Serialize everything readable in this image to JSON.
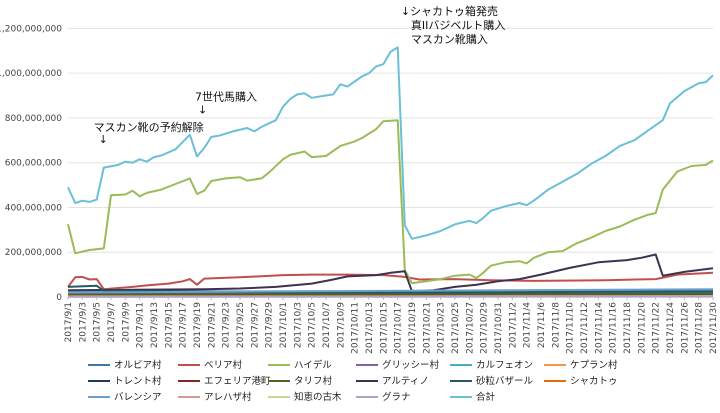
{
  "chart_data": {
    "type": "line",
    "title": "",
    "xlabel": "",
    "ylabel": "",
    "ylim": [
      0,
      1300000000
    ],
    "yticks": [
      0,
      200000000,
      400000000,
      600000000,
      800000000,
      1000000000,
      1200000000
    ],
    "ytick_labels": [
      "0",
      "200,000,000",
      "400,000,000",
      "600,000,000",
      "800,000,000",
      "1,000,000,000",
      "1,200,000,000"
    ],
    "x_start": "2017/9/1",
    "x_end": "2017/11/30",
    "xtick_labels": [
      "2017/9/1",
      "2017/9/3",
      "2017/9/5",
      "2017/9/7",
      "2017/9/9",
      "2017/9/11",
      "2017/9/13",
      "2017/9/15",
      "2017/9/17",
      "2017/9/19",
      "2017/9/21",
      "2017/9/23",
      "2017/9/25",
      "2017/9/27",
      "2017/9/29",
      "2017/10/1",
      "2017/10/3",
      "2017/10/5",
      "2017/10/7",
      "2017/10/9",
      "2017/10/11",
      "2017/10/13",
      "2017/10/15",
      "2017/10/17",
      "2017/10/19",
      "2017/10/21",
      "2017/10/23",
      "2017/10/25",
      "2017/10/27",
      "2017/10/29",
      "2017/10/31",
      "2017/11/2",
      "2017/11/4",
      "2017/11/6",
      "2017/11/8",
      "2017/11/10",
      "2017/11/12",
      "2017/11/14",
      "2017/11/16",
      "2017/11/18",
      "2017/11/20",
      "2017/11/22",
      "2017/11/24",
      "2017/11/26",
      "2017/11/28",
      "2017/11/30"
    ],
    "grid": "horizontal",
    "legend_position": "bottom",
    "annotations": [
      {
        "text": "マスカン靴の予約解除",
        "arrow": "↓",
        "date": "2017/9/5",
        "value": 760000000
      },
      {
        "text": "7世代馬購入",
        "arrow": "↓",
        "date": "2017/9/19",
        "value": 860000000
      },
      {
        "text": "シャカトゥ箱発売",
        "arrow": "↓",
        "date": "2017/10/18",
        "value": 1260000000
      },
      {
        "text": "真IIバジベルト購入",
        "arrow": "",
        "date": "2017/10/18",
        "value": 1260000000
      },
      {
        "text": "マスカン靴購入",
        "arrow": "",
        "date": "2017/10/18",
        "value": 1260000000
      }
    ],
    "series": [
      {
        "name": "オルビア村",
        "color": "#3e77a8",
        "points": [
          [
            "2017/9/1",
            15000000
          ],
          [
            "2017/11/30",
            22000000
          ]
        ]
      },
      {
        "name": "ベリア村",
        "color": "#c0504d",
        "points": [
          [
            "2017/9/1",
            45000000
          ],
          [
            "2017/9/2",
            88000000
          ],
          [
            "2017/9/3",
            90000000
          ],
          [
            "2017/9/4",
            78000000
          ],
          [
            "2017/9/5",
            80000000
          ],
          [
            "2017/9/6",
            35000000
          ],
          [
            "2017/9/8",
            40000000
          ],
          [
            "2017/9/10",
            45000000
          ],
          [
            "2017/9/12",
            52000000
          ],
          [
            "2017/9/15",
            60000000
          ],
          [
            "2017/9/17",
            70000000
          ],
          [
            "2017/9/18",
            80000000
          ],
          [
            "2017/9/19",
            55000000
          ],
          [
            "2017/9/20",
            82000000
          ],
          [
            "2017/9/25",
            88000000
          ],
          [
            "2017/10/1",
            98000000
          ],
          [
            "2017/10/5",
            100000000
          ],
          [
            "2017/10/10",
            100000000
          ],
          [
            "2017/10/15",
            98000000
          ],
          [
            "2017/10/18",
            90000000
          ],
          [
            "2017/10/20",
            78000000
          ],
          [
            "2017/10/25",
            80000000
          ],
          [
            "2017/10/30",
            75000000
          ],
          [
            "2017/11/5",
            72000000
          ],
          [
            "2017/11/15",
            75000000
          ],
          [
            "2017/11/22",
            80000000
          ],
          [
            "2017/11/25",
            100000000
          ],
          [
            "2017/11/30",
            108000000
          ]
        ]
      },
      {
        "name": "ハイデル",
        "color": "#9bbb59",
        "points": [
          [
            "2017/9/1",
            325000000
          ],
          [
            "2017/9/2",
            195000000
          ],
          [
            "2017/9/4",
            210000000
          ],
          [
            "2017/9/6",
            217000000
          ],
          [
            "2017/9/7",
            455000000
          ],
          [
            "2017/9/9",
            458000000
          ],
          [
            "2017/9/10",
            475000000
          ],
          [
            "2017/9/11",
            450000000
          ],
          [
            "2017/9/12",
            465000000
          ],
          [
            "2017/9/14",
            480000000
          ],
          [
            "2017/9/16",
            505000000
          ],
          [
            "2017/9/18",
            530000000
          ],
          [
            "2017/9/19",
            460000000
          ],
          [
            "2017/9/20",
            475000000
          ],
          [
            "2017/9/21",
            518000000
          ],
          [
            "2017/9/23",
            530000000
          ],
          [
            "2017/9/25",
            535000000
          ],
          [
            "2017/9/26",
            520000000
          ],
          [
            "2017/9/28",
            530000000
          ],
          [
            "2017/9/29",
            555000000
          ],
          [
            "2017/10/1",
            615000000
          ],
          [
            "2017/10/2",
            635000000
          ],
          [
            "2017/10/4",
            650000000
          ],
          [
            "2017/10/5",
            625000000
          ],
          [
            "2017/10/7",
            630000000
          ],
          [
            "2017/10/9",
            675000000
          ],
          [
            "2017/10/11",
            695000000
          ],
          [
            "2017/10/12",
            710000000
          ],
          [
            "2017/10/14",
            750000000
          ],
          [
            "2017/10/15",
            785000000
          ],
          [
            "2017/10/17",
            790000000
          ],
          [
            "2017/10/18",
            120000000
          ],
          [
            "2017/10/19",
            62000000
          ],
          [
            "2017/10/21",
            70000000
          ],
          [
            "2017/10/23",
            80000000
          ],
          [
            "2017/10/25",
            95000000
          ],
          [
            "2017/10/27",
            100000000
          ],
          [
            "2017/10/28",
            85000000
          ],
          [
            "2017/10/29",
            110000000
          ],
          [
            "2017/10/30",
            140000000
          ],
          [
            "2017/11/1",
            155000000
          ],
          [
            "2017/11/3",
            160000000
          ],
          [
            "2017/11/4",
            150000000
          ],
          [
            "2017/11/5",
            175000000
          ],
          [
            "2017/11/7",
            200000000
          ],
          [
            "2017/11/9",
            205000000
          ],
          [
            "2017/11/11",
            240000000
          ],
          [
            "2017/11/13",
            265000000
          ],
          [
            "2017/11/15",
            295000000
          ],
          [
            "2017/11/17",
            315000000
          ],
          [
            "2017/11/19",
            345000000
          ],
          [
            "2017/11/21",
            368000000
          ],
          [
            "2017/11/22",
            375000000
          ],
          [
            "2017/11/23",
            480000000
          ],
          [
            "2017/11/25",
            560000000
          ],
          [
            "2017/11/27",
            585000000
          ],
          [
            "2017/11/29",
            590000000
          ],
          [
            "2017/11/30",
            610000000
          ]
        ]
      },
      {
        "name": "グリッシー村",
        "color": "#8064a2",
        "points": [
          [
            "2017/9/1",
            8000000
          ],
          [
            "2017/11/30",
            10000000
          ]
        ]
      },
      {
        "name": "カルフェオン",
        "color": "#4bacc6",
        "points": [
          [
            "2017/9/1",
            25000000
          ],
          [
            "2017/10/18",
            25000000
          ],
          [
            "2017/11/30",
            30000000
          ]
        ]
      },
      {
        "name": "ケプラン村",
        "color": "#f79646",
        "points": [
          [
            "2017/9/1",
            5000000
          ],
          [
            "2017/11/30",
            6000000
          ]
        ]
      },
      {
        "name": "トレント村",
        "color": "#1f3864",
        "points": [
          [
            "2017/9/1",
            10000000
          ],
          [
            "2017/11/30",
            12000000
          ]
        ]
      },
      {
        "name": "エフェリア港町",
        "color": "#7f2a2a",
        "points": [
          [
            "2017/9/1",
            6000000
          ],
          [
            "2017/11/30",
            8000000
          ]
        ]
      },
      {
        "name": "タリフ村",
        "color": "#4f6228",
        "points": [
          [
            "2017/9/1",
            12000000
          ],
          [
            "2017/11/30",
            14000000
          ]
        ]
      },
      {
        "name": "アルティノ",
        "color": "#3f3151",
        "points": [
          [
            "2017/9/1",
            30000000
          ],
          [
            "2017/9/10",
            32000000
          ],
          [
            "2017/9/20",
            35000000
          ],
          [
            "2017/9/25",
            38000000
          ],
          [
            "2017/9/30",
            45000000
          ],
          [
            "2017/10/5",
            60000000
          ],
          [
            "2017/10/8",
            78000000
          ],
          [
            "2017/10/10",
            92000000
          ],
          [
            "2017/10/14",
            98000000
          ],
          [
            "2017/10/16",
            108000000
          ],
          [
            "2017/10/18",
            115000000
          ],
          [
            "2017/10/19",
            25000000
          ],
          [
            "2017/10/22",
            30000000
          ],
          [
            "2017/10/25",
            45000000
          ],
          [
            "2017/10/28",
            55000000
          ],
          [
            "2017/10/31",
            70000000
          ],
          [
            "2017/11/3",
            80000000
          ],
          [
            "2017/11/6",
            100000000
          ],
          [
            "2017/11/10",
            130000000
          ],
          [
            "2017/11/14",
            155000000
          ],
          [
            "2017/11/18",
            165000000
          ],
          [
            "2017/11/20",
            175000000
          ],
          [
            "2017/11/22",
            190000000
          ],
          [
            "2017/11/23",
            95000000
          ],
          [
            "2017/11/26",
            112000000
          ],
          [
            "2017/11/30",
            128000000
          ]
        ]
      },
      {
        "name": "砂粒バザール",
        "color": "#215968",
        "points": [
          [
            "2017/9/1",
            45000000
          ],
          [
            "2017/9/5",
            50000000
          ],
          [
            "2017/9/6",
            28000000
          ],
          [
            "2017/9/20",
            25000000
          ],
          [
            "2017/10/1",
            22000000
          ],
          [
            "2017/10/18",
            20000000
          ],
          [
            "2017/11/30",
            25000000
          ]
        ]
      },
      {
        "name": "シャカトゥ",
        "color": "#e46c0a",
        "points": [
          [
            "2017/9/1",
            3000000
          ],
          [
            "2017/11/30",
            4000000
          ]
        ]
      },
      {
        "name": "バレンシア",
        "color": "#6a9fcf",
        "points": [
          [
            "2017/9/1",
            20000000
          ],
          [
            "2017/11/30",
            35000000
          ]
        ]
      },
      {
        "name": "アレハザ村",
        "color": "#d99694",
        "points": [
          [
            "2017/9/1",
            2000000
          ],
          [
            "2017/11/30",
            3000000
          ]
        ]
      },
      {
        "name": "知恵の古木",
        "color": "#c3d69b",
        "points": [
          [
            "2017/9/1",
            2000000
          ],
          [
            "2017/11/30",
            3000000
          ]
        ]
      },
      {
        "name": "グラナ",
        "color": "#b3a2c7",
        "points": [
          [
            "2017/9/1",
            1000000
          ],
          [
            "2017/11/30",
            2000000
          ]
        ]
      },
      {
        "name": "合計",
        "color": "#6bbfd6",
        "points": [
          [
            "2017/9/1",
            490000000
          ],
          [
            "2017/9/2",
            420000000
          ],
          [
            "2017/9/3",
            430000000
          ],
          [
            "2017/9/4",
            425000000
          ],
          [
            "2017/9/5",
            435000000
          ],
          [
            "2017/9/6",
            578000000
          ],
          [
            "2017/9/8",
            590000000
          ],
          [
            "2017/9/9",
            605000000
          ],
          [
            "2017/9/10",
            600000000
          ],
          [
            "2017/9/11",
            615000000
          ],
          [
            "2017/9/12",
            605000000
          ],
          [
            "2017/9/13",
            625000000
          ],
          [
            "2017/9/14",
            632000000
          ],
          [
            "2017/9/16",
            660000000
          ],
          [
            "2017/9/18",
            725000000
          ],
          [
            "2017/9/19",
            628000000
          ],
          [
            "2017/9/20",
            665000000
          ],
          [
            "2017/9/21",
            715000000
          ],
          [
            "2017/9/22",
            720000000
          ],
          [
            "2017/9/24",
            740000000
          ],
          [
            "2017/9/26",
            755000000
          ],
          [
            "2017/9/27",
            740000000
          ],
          [
            "2017/9/28",
            760000000
          ],
          [
            "2017/9/30",
            790000000
          ],
          [
            "2017/10/1",
            850000000
          ],
          [
            "2017/10/2",
            885000000
          ],
          [
            "2017/10/3",
            905000000
          ],
          [
            "2017/10/4",
            910000000
          ],
          [
            "2017/10/5",
            890000000
          ],
          [
            "2017/10/7",
            900000000
          ],
          [
            "2017/10/8",
            905000000
          ],
          [
            "2017/10/9",
            950000000
          ],
          [
            "2017/10/10",
            940000000
          ],
          [
            "2017/10/12",
            985000000
          ],
          [
            "2017/10/13",
            1000000000
          ],
          [
            "2017/10/14",
            1030000000
          ],
          [
            "2017/10/15",
            1040000000
          ],
          [
            "2017/10/16",
            1095000000
          ],
          [
            "2017/10/17",
            1115000000
          ],
          [
            "2017/10/18",
            320000000
          ],
          [
            "2017/10/19",
            260000000
          ],
          [
            "2017/10/21",
            275000000
          ],
          [
            "2017/10/23",
            295000000
          ],
          [
            "2017/10/25",
            325000000
          ],
          [
            "2017/10/27",
            340000000
          ],
          [
            "2017/10/28",
            330000000
          ],
          [
            "2017/10/29",
            355000000
          ],
          [
            "2017/10/30",
            385000000
          ],
          [
            "2017/11/1",
            405000000
          ],
          [
            "2017/11/3",
            420000000
          ],
          [
            "2017/11/4",
            410000000
          ],
          [
            "2017/11/5",
            430000000
          ],
          [
            "2017/11/7",
            480000000
          ],
          [
            "2017/11/9",
            515000000
          ],
          [
            "2017/11/11",
            550000000
          ],
          [
            "2017/11/13",
            595000000
          ],
          [
            "2017/11/15",
            630000000
          ],
          [
            "2017/11/17",
            675000000
          ],
          [
            "2017/11/19",
            700000000
          ],
          [
            "2017/11/21",
            745000000
          ],
          [
            "2017/11/23",
            790000000
          ],
          [
            "2017/11/24",
            865000000
          ],
          [
            "2017/11/26",
            920000000
          ],
          [
            "2017/11/28",
            955000000
          ],
          [
            "2017/11/29",
            960000000
          ],
          [
            "2017/11/30",
            990000000
          ]
        ]
      }
    ]
  }
}
